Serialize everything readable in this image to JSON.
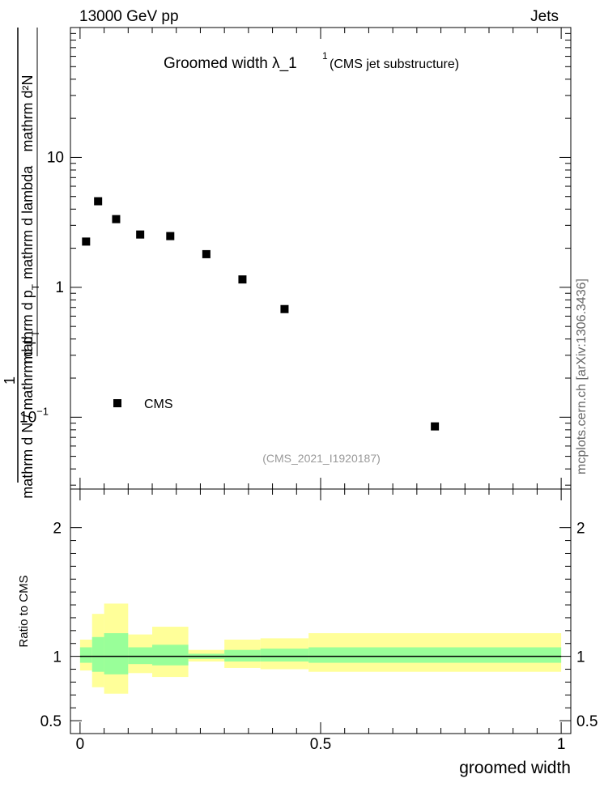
{
  "header": {
    "left": "13000 GeV pp",
    "right": "Jets"
  },
  "plot_title": {
    "main": "Groomed width  λ_1",
    "superscript": "1",
    "suffix": "(CMS jet substructure)"
  },
  "y_axis_label": {
    "numerator": "mathrm d²N",
    "denominator": "mathrm d p",
    "denominator_sub": "T",
    "denominator_rest": "mathrm d lambda",
    "one": "1",
    "outer_denominator": "mathrm d N / mathrm d p",
    "outer_sub": "T"
  },
  "side_label": "mcplots.cern.ch [arXiv:1306.3436]",
  "analysis_id": "(CMS_2021_I1920187)",
  "legend": {
    "label": "CMS"
  },
  "ratio_ylabel": "Ratio to CMS",
  "xlabel": "groomed width",
  "colors": {
    "data": "#000000",
    "band_inner": "#99ff99",
    "band_outer": "#ffff99",
    "id_text": "#999999"
  },
  "chart_data": [
    {
      "type": "scatter",
      "title": "Groomed width  λ_1^1 (CMS jet substructure)",
      "xlim": [
        -0.02,
        1.02
      ],
      "ylim": [
        0.028,
        100
      ],
      "yscale": "log",
      "y_ticks": [
        {
          "value": 10,
          "label": "10"
        },
        {
          "value": 1,
          "label": "1"
        },
        {
          "value": 0.1,
          "label": "10",
          "exp": "−1"
        }
      ],
      "legend_placement": "lower-left",
      "series": [
        {
          "name": "CMS",
          "x": [
            0.0125,
            0.0375,
            0.075,
            0.125,
            0.1875,
            0.2625,
            0.3375,
            0.425,
            0.7375
          ],
          "values": [
            2.25,
            4.6,
            3.35,
            2.55,
            2.48,
            1.8,
            1.15,
            0.68,
            0.085
          ]
        }
      ]
    },
    {
      "type": "area",
      "ylabel": "Ratio to CMS",
      "xlabel": "groomed width",
      "xlim": [
        -0.02,
        1.02
      ],
      "ylim": [
        0.4,
        2.3
      ],
      "y_ticks": [
        {
          "value": 2,
          "label": "2"
        },
        {
          "value": 1,
          "label": "1"
        },
        {
          "value": 0.5,
          "label": "0.5"
        }
      ],
      "x_ticks": [
        {
          "value": 0,
          "label": "0"
        },
        {
          "value": 0.5,
          "label": "0.5"
        },
        {
          "value": 1,
          "label": "1"
        }
      ],
      "bins": [
        {
          "lo": 0.0,
          "hi": 0.025,
          "inner": [
            0.95,
            1.07
          ],
          "outer": [
            0.89,
            1.13
          ]
        },
        {
          "lo": 0.025,
          "hi": 0.05,
          "inner": [
            0.88,
            1.15
          ],
          "outer": [
            0.76,
            1.33
          ]
        },
        {
          "lo": 0.05,
          "hi": 0.1,
          "inner": [
            0.86,
            1.18
          ],
          "outer": [
            0.71,
            1.41
          ]
        },
        {
          "lo": 0.1,
          "hi": 0.15,
          "inner": [
            0.94,
            1.07
          ],
          "outer": [
            0.87,
            1.17
          ]
        },
        {
          "lo": 0.15,
          "hi": 0.225,
          "inner": [
            0.93,
            1.09
          ],
          "outer": [
            0.84,
            1.23
          ]
        },
        {
          "lo": 0.225,
          "hi": 0.3,
          "inner": [
            0.98,
            1.02
          ],
          "outer": [
            0.96,
            1.05
          ]
        },
        {
          "lo": 0.3,
          "hi": 0.375,
          "inner": [
            0.96,
            1.05
          ],
          "outer": [
            0.91,
            1.13
          ]
        },
        {
          "lo": 0.375,
          "hi": 0.475,
          "inner": [
            0.96,
            1.06
          ],
          "outer": [
            0.9,
            1.14
          ]
        },
        {
          "lo": 0.475,
          "hi": 1.0,
          "inner": [
            0.95,
            1.07
          ],
          "outer": [
            0.88,
            1.18
          ]
        }
      ]
    }
  ]
}
